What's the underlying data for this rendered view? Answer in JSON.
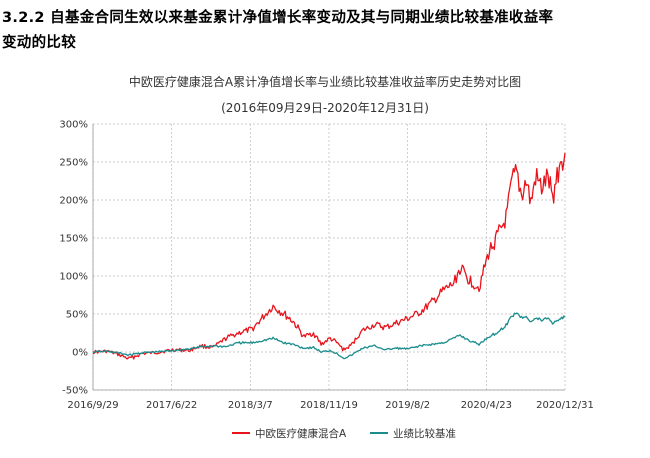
{
  "heading": {
    "line1": "3.2.2 自基金合同生效以来基金累计净值增长率变动及其与同期业绩比较基准收益率",
    "line2": "变动的比较"
  },
  "chart_data": {
    "type": "line",
    "title": "中欧医疗健康混合A累计净值增长率与业绩比较基准收益率历史走势对比图",
    "subtitle": "(2016年09月29日-2020年12月31日)",
    "x_tick_labels": [
      "2016/9/29",
      "2017/6/22",
      "2018/3/7",
      "2018/11/19",
      "2019/8/2",
      "2020/4/23",
      "2020/12/31"
    ],
    "x_range": [
      "2016-09-29",
      "2020-12-31"
    ],
    "ylim": [
      -50,
      300
    ],
    "y_ticks": [
      -50,
      0,
      50,
      100,
      150,
      200,
      250,
      300
    ],
    "y_tick_labels": [
      "-50%",
      "0%",
      "50%",
      "100%",
      "150%",
      "200%",
      "250%",
      "300%"
    ],
    "grid": true,
    "legend_position": "bottom",
    "series": [
      {
        "name": "中欧医疗健康混合A",
        "color": "#e8141b",
        "points": [
          [
            "2016-09-29",
            0
          ],
          [
            "2016-11-15",
            1
          ],
          [
            "2016-12-20",
            -3
          ],
          [
            "2017-01-25",
            -9
          ],
          [
            "2017-03-10",
            -2
          ],
          [
            "2017-04-20",
            -1
          ],
          [
            "2017-06-22",
            3
          ],
          [
            "2017-08-10",
            2
          ],
          [
            "2017-09-20",
            8
          ],
          [
            "2017-10-30",
            6
          ],
          [
            "2017-12-10",
            18
          ],
          [
            "2018-01-20",
            25
          ],
          [
            "2018-03-07",
            30
          ],
          [
            "2018-04-10",
            45
          ],
          [
            "2018-05-15",
            60
          ],
          [
            "2018-06-20",
            50
          ],
          [
            "2018-07-20",
            40
          ],
          [
            "2018-08-25",
            20
          ],
          [
            "2018-09-25",
            25
          ],
          [
            "2018-10-20",
            10
          ],
          [
            "2018-11-19",
            18
          ],
          [
            "2018-12-10",
            12
          ],
          [
            "2019-01-03",
            3
          ],
          [
            "2019-01-25",
            8
          ],
          [
            "2019-03-05",
            28
          ],
          [
            "2019-04-15",
            36
          ],
          [
            "2019-05-20",
            32
          ],
          [
            "2019-06-25",
            38
          ],
          [
            "2019-08-02",
            44
          ],
          [
            "2019-09-10",
            52
          ],
          [
            "2019-10-20",
            65
          ],
          [
            "2019-11-25",
            80
          ],
          [
            "2019-12-31",
            90
          ],
          [
            "2020-01-20",
            110
          ],
          [
            "2020-02-20",
            95
          ],
          [
            "2020-03-23",
            85
          ],
          [
            "2020-04-23",
            130
          ],
          [
            "2020-05-20",
            150
          ],
          [
            "2020-06-20",
            175
          ],
          [
            "2020-07-10",
            225
          ],
          [
            "2020-07-25",
            235
          ],
          [
            "2020-08-10",
            205
          ],
          [
            "2020-08-25",
            225
          ],
          [
            "2020-09-10",
            195
          ],
          [
            "2020-09-25",
            230
          ],
          [
            "2020-10-15",
            215
          ],
          [
            "2020-11-05",
            230
          ],
          [
            "2020-11-20",
            200
          ],
          [
            "2020-12-05",
            235
          ],
          [
            "2020-12-31",
            262
          ]
        ]
      },
      {
        "name": "业绩比较基准",
        "color": "#1a8c8c",
        "points": [
          [
            "2016-09-29",
            0
          ],
          [
            "2016-11-15",
            1
          ],
          [
            "2016-12-20",
            -1
          ],
          [
            "2017-01-25",
            -4
          ],
          [
            "2017-03-10",
            -1
          ],
          [
            "2017-04-20",
            0
          ],
          [
            "2017-06-22",
            2
          ],
          [
            "2017-08-10",
            4
          ],
          [
            "2017-09-20",
            7
          ],
          [
            "2017-10-30",
            8
          ],
          [
            "2017-12-10",
            7
          ],
          [
            "2018-01-20",
            12
          ],
          [
            "2018-03-07",
            12
          ],
          [
            "2018-04-10",
            15
          ],
          [
            "2018-05-15",
            18
          ],
          [
            "2018-06-20",
            12
          ],
          [
            "2018-07-20",
            10
          ],
          [
            "2018-08-25",
            5
          ],
          [
            "2018-09-25",
            6
          ],
          [
            "2018-10-20",
            0
          ],
          [
            "2018-11-19",
            2
          ],
          [
            "2018-12-10",
            -2
          ],
          [
            "2019-01-03",
            -8
          ],
          [
            "2019-01-25",
            -5
          ],
          [
            "2019-03-05",
            5
          ],
          [
            "2019-04-15",
            8
          ],
          [
            "2019-05-20",
            3
          ],
          [
            "2019-06-25",
            5
          ],
          [
            "2019-08-02",
            4
          ],
          [
            "2019-09-10",
            8
          ],
          [
            "2019-10-20",
            10
          ],
          [
            "2019-11-25",
            12
          ],
          [
            "2019-12-31",
            18
          ],
          [
            "2020-01-20",
            22
          ],
          [
            "2020-02-20",
            15
          ],
          [
            "2020-03-23",
            10
          ],
          [
            "2020-04-23",
            20
          ],
          [
            "2020-05-20",
            25
          ],
          [
            "2020-06-20",
            35
          ],
          [
            "2020-07-10",
            48
          ],
          [
            "2020-07-25",
            52
          ],
          [
            "2020-08-10",
            45
          ],
          [
            "2020-08-25",
            48
          ],
          [
            "2020-09-10",
            40
          ],
          [
            "2020-09-25",
            44
          ],
          [
            "2020-10-15",
            42
          ],
          [
            "2020-11-05",
            45
          ],
          [
            "2020-11-20",
            38
          ],
          [
            "2020-12-05",
            42
          ],
          [
            "2020-12-31",
            46
          ]
        ]
      }
    ]
  }
}
